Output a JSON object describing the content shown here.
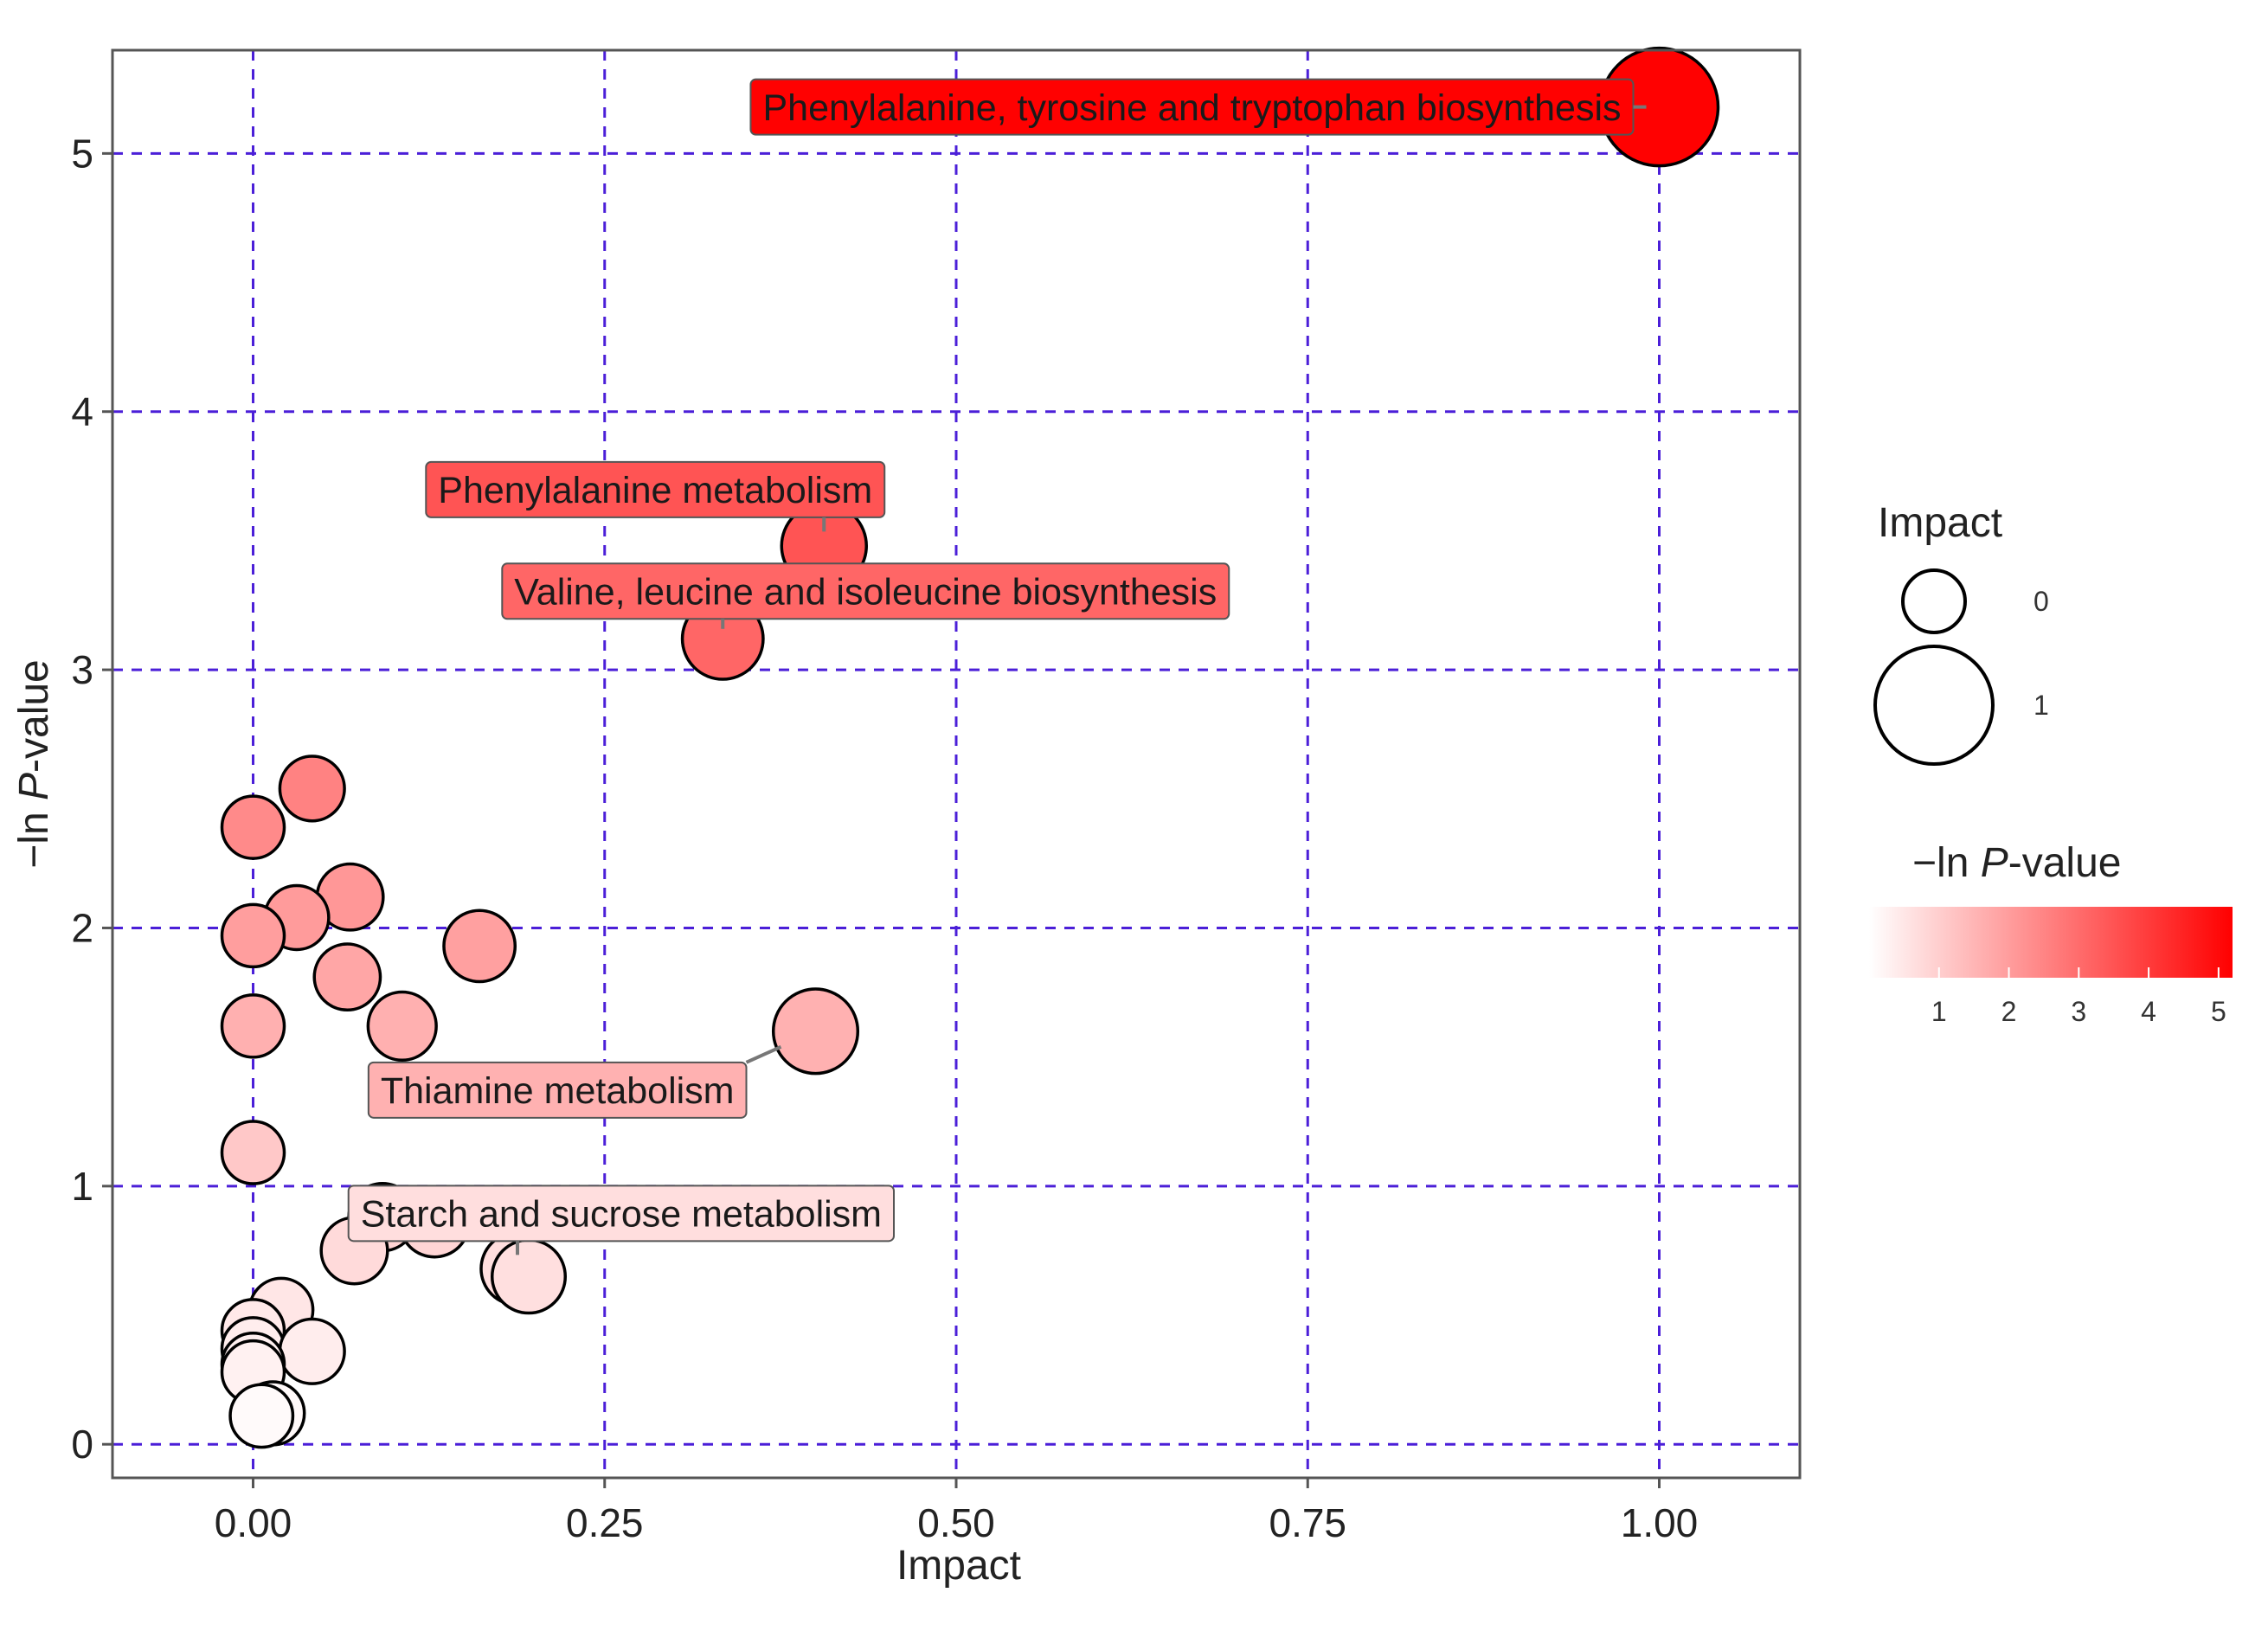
{
  "chart_data": {
    "type": "scatter",
    "title": "",
    "xlabel": "Impact",
    "ylabel_prefix": "−ln ",
    "ylabel_italic": "P",
    "ylabel_suffix": "-value",
    "xlim": [
      -0.1,
      1.1
    ],
    "ylim": [
      -0.13,
      5.4
    ],
    "x_ticks": [
      0,
      0.25,
      0.5,
      0.75,
      1.0
    ],
    "x_tick_labels": [
      "0.00",
      "0.25",
      "0.50",
      "0.75",
      "1.00"
    ],
    "y_ticks": [
      0,
      1,
      2,
      3,
      4,
      5
    ],
    "y_tick_labels": [
      "0",
      "1",
      "2",
      "3",
      "4",
      "5"
    ],
    "grid": true,
    "grid_color": "#4b1fd8",
    "points": [
      {
        "x": 1.0,
        "y": 5.18,
        "impact": 1.0,
        "color_value": 5.18
      },
      {
        "x": 0.406,
        "y": 3.48,
        "impact": 0.406,
        "color_value": 3.48
      },
      {
        "x": 0.334,
        "y": 3.12,
        "impact": 0.334,
        "color_value": 3.12
      },
      {
        "x": 0.4,
        "y": 1.6,
        "impact": 0.4,
        "color_value": 1.6
      },
      {
        "x": 0.161,
        "y": 1.93,
        "impact": 0.161,
        "color_value": 1.93
      },
      {
        "x": 0.106,
        "y": 1.62,
        "impact": 0.106,
        "color_value": 1.62
      },
      {
        "x": 0.042,
        "y": 2.54,
        "impact": 0.042,
        "color_value": 2.54
      },
      {
        "x": 0.0,
        "y": 2.39,
        "impact": 0.0,
        "color_value": 2.39
      },
      {
        "x": 0.069,
        "y": 2.12,
        "impact": 0.069,
        "color_value": 2.12
      },
      {
        "x": 0.031,
        "y": 2.04,
        "impact": 0.031,
        "color_value": 2.04
      },
      {
        "x": 0.0,
        "y": 1.97,
        "impact": 0.0,
        "color_value": 1.97
      },
      {
        "x": 0.067,
        "y": 1.81,
        "impact": 0.067,
        "color_value": 1.81
      },
      {
        "x": 0.0,
        "y": 1.62,
        "impact": 0.0,
        "color_value": 1.62
      },
      {
        "x": 0.0,
        "y": 1.13,
        "impact": 0.0,
        "color_value": 1.13
      },
      {
        "x": 0.092,
        "y": 0.88,
        "impact": 0.092,
        "color_value": 0.88
      },
      {
        "x": 0.129,
        "y": 0.86,
        "impact": 0.129,
        "color_value": 0.86
      },
      {
        "x": 0.072,
        "y": 0.75,
        "impact": 0.072,
        "color_value": 0.75
      },
      {
        "x": 0.188,
        "y": 0.68,
        "impact": 0.188,
        "color_value": 0.68
      },
      {
        "x": 0.196,
        "y": 0.65,
        "impact": 0.196,
        "color_value": 0.65
      },
      {
        "x": 0.02,
        "y": 0.52,
        "impact": 0.02,
        "color_value": 0.52
      },
      {
        "x": 0.0,
        "y": 0.44,
        "impact": 0.0,
        "color_value": 0.44
      },
      {
        "x": 0.0,
        "y": 0.37,
        "impact": 0.0,
        "color_value": 0.37
      },
      {
        "x": 0.042,
        "y": 0.36,
        "impact": 0.042,
        "color_value": 0.36
      },
      {
        "x": 0.0,
        "y": 0.31,
        "impact": 0.0,
        "color_value": 0.31
      },
      {
        "x": 0.0,
        "y": 0.28,
        "impact": 0.0,
        "color_value": 0.28
      },
      {
        "x": 0.014,
        "y": 0.12,
        "impact": 0.014,
        "color_value": 0.12
      },
      {
        "x": 0.006,
        "y": 0.11,
        "impact": 0.006,
        "color_value": 0.11
      }
    ],
    "annotations": [
      {
        "text": "Phenylalanine, tyrosine and tryptophan biosynthesis",
        "point_index": 0,
        "color_value": 5.18
      },
      {
        "text": "Phenylalanine metabolism",
        "point_index": 1,
        "color_value": 3.48
      },
      {
        "text": "Valine, leucine and isoleucine biosynthesis",
        "point_index": 2,
        "color_value": 3.12
      },
      {
        "text": "Thiamine metabolism",
        "point_index": 3,
        "color_value": 1.6
      },
      {
        "text": "Starch and sucrose metabolism",
        "point_index": 17,
        "color_value": 0.68
      }
    ],
    "legend_size": {
      "title": "Impact",
      "entries": [
        {
          "label": "0",
          "impact": 0
        },
        {
          "label": "1",
          "impact": 1
        }
      ]
    },
    "legend_color": {
      "title_prefix": "−ln ",
      "title_italic": "P",
      "title_suffix": "-value",
      "range": [
        0,
        5.2
      ],
      "ticks": [
        1,
        2,
        3,
        4,
        5
      ],
      "tick_labels": [
        "1",
        "2",
        "3",
        "4",
        "5"
      ],
      "low_color": "#ffffff",
      "high_color": "#ff0000"
    }
  }
}
